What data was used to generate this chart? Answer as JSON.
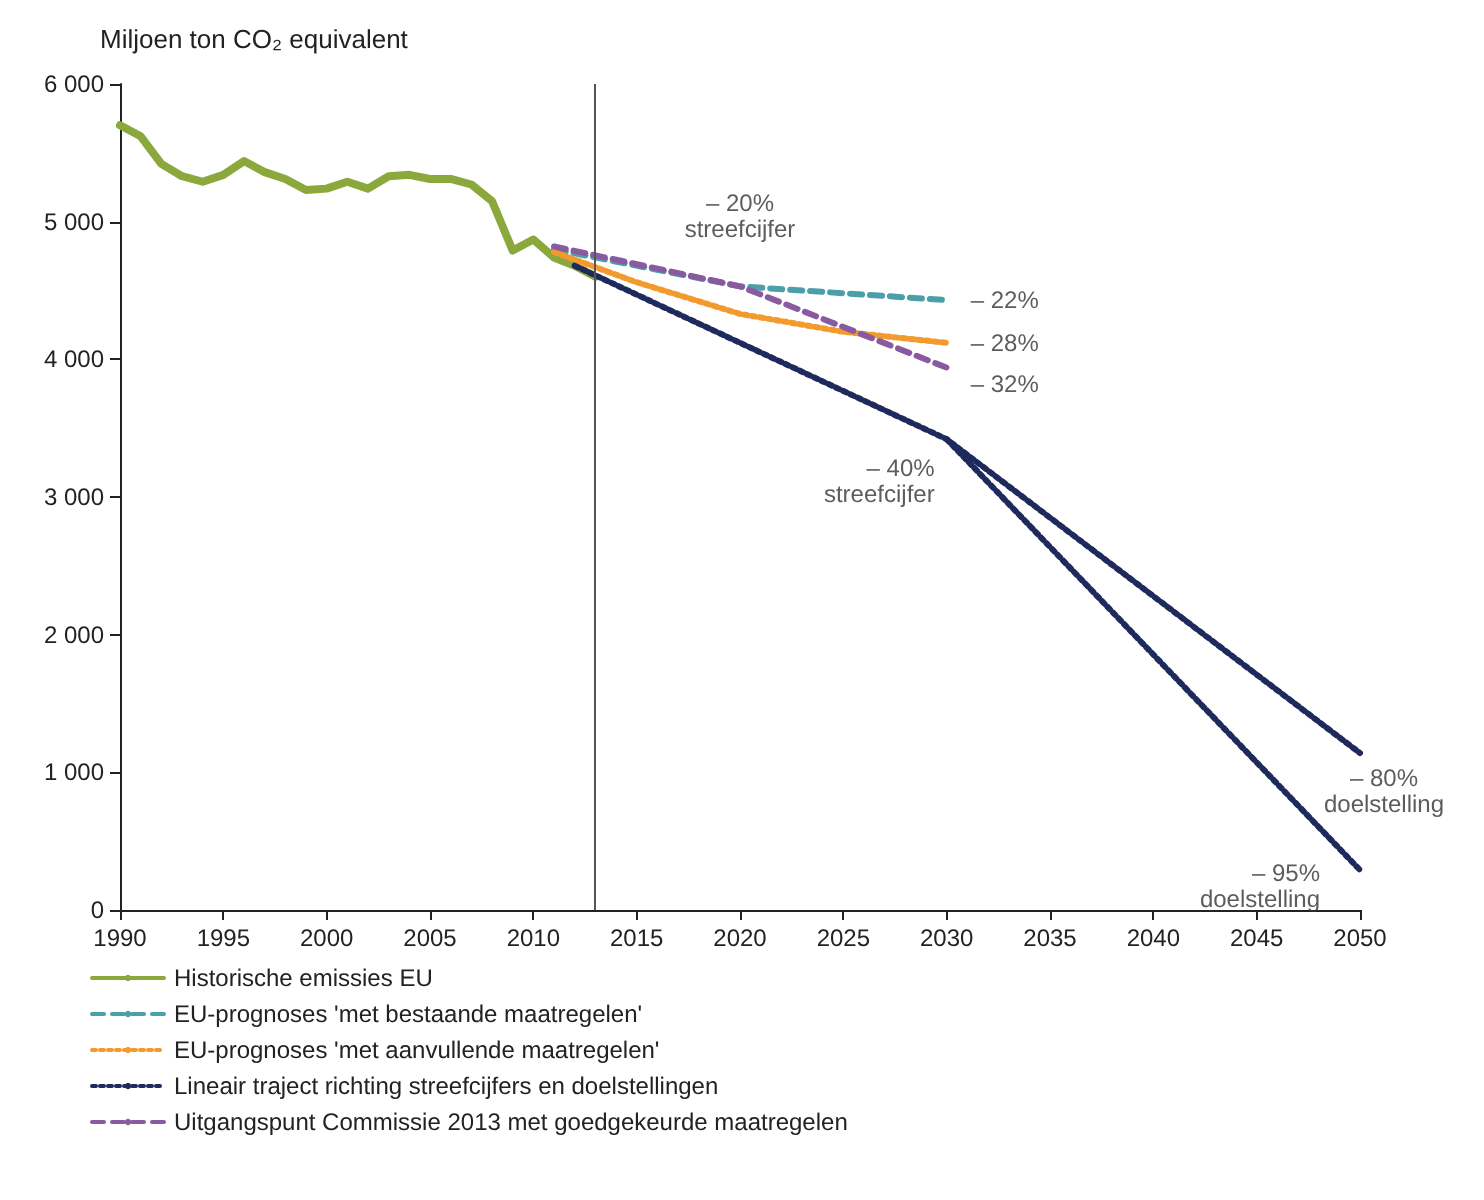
{
  "chart_data": {
    "type": "line",
    "ylabel": "Miljoen ton CO₂ equivalent",
    "xlim": [
      1990,
      2050
    ],
    "xticks": [
      1990,
      1995,
      2000,
      2005,
      2010,
      2015,
      2020,
      2025,
      2030,
      2035,
      2040,
      2045,
      2050
    ],
    "ylim": [
      0,
      6000
    ],
    "yticks": [
      {
        "value": 0,
        "label": "0"
      },
      {
        "value": 1000,
        "label": "1 000"
      },
      {
        "value": 2000,
        "label": "2 000"
      },
      {
        "value": 3000,
        "label": "3 000"
      },
      {
        "value": 4000,
        "label": "4 000"
      },
      {
        "value": 5000,
        "label": "5 000"
      },
      {
        "value": 6000,
        "label": "6 000"
      }
    ],
    "grid": false,
    "legend": "bottom",
    "marker": "none",
    "series": [
      {
        "name": "Historische emissies EU",
        "color": "#8aa83c",
        "line_style": "solid",
        "x": [
          1990,
          1991,
          1992,
          1993,
          1994,
          1995,
          1996,
          1997,
          1998,
          1999,
          2000,
          2001,
          2002,
          2003,
          2004,
          2005,
          2006,
          2007,
          2008,
          2009,
          2010,
          2011,
          2012,
          2013
        ],
        "values": [
          5700,
          5620,
          5420,
          5330,
          5290,
          5340,
          5440,
          5360,
          5310,
          5230,
          5240,
          5290,
          5240,
          5330,
          5340,
          5310,
          5310,
          5270,
          5150,
          4790,
          4870,
          4740,
          4680,
          4600
        ]
      },
      {
        "name": "EU-prognoses 'met bestaande maatregelen'",
        "color": "#4a9fa8",
        "line_style": "dashed",
        "x": [
          2011,
          2020,
          2030
        ],
        "values": [
          4800,
          4530,
          4430
        ]
      },
      {
        "name": "EU-prognoses 'met aanvullende maatregelen'",
        "color": "#f39a2e",
        "line_style": "dotted",
        "x": [
          2011,
          2015,
          2020,
          2025,
          2030
        ],
        "values": [
          4780,
          4560,
          4330,
          4200,
          4120
        ]
      },
      {
        "name": "Lineair traject richting streefcijfers en doelstellingen",
        "color": "#1f2a5c",
        "line_style": "dotted",
        "x": [
          2012,
          2030,
          2050
        ],
        "values": [
          4680,
          3420,
          1140
        ]
      },
      {
        "color": "#1f2a5c",
        "line_style": "dotted",
        "x": [
          2030,
          2050
        ],
        "values": [
          3420,
          290
        ]
      },
      {
        "name": "Uitgangspunt Commissie 2013 met goedgekeurde maatregelen",
        "color": "#8a5aa0",
        "line_style": "dashed",
        "x": [
          2011,
          2020,
          2030
        ],
        "values": [
          4820,
          4530,
          3940
        ]
      }
    ],
    "ref_lines": [
      {
        "axis": "x",
        "value": 2013,
        "color": "#555555",
        "line_style": "solid"
      }
    ],
    "annotations": [
      {
        "text": "– 20%\nstreefcijfer",
        "x": 2020,
        "y": 4530
      },
      {
        "text": "– 22%",
        "x": 2030,
        "y": 4430
      },
      {
        "text": "– 28%",
        "x": 2030,
        "y": 4120
      },
      {
        "text": "– 32%",
        "x": 2030,
        "y": 3940
      },
      {
        "text": "– 40%\nstreefcijfer",
        "x": 2030,
        "y": 3420
      },
      {
        "text": "– 80%\ndoelstelling",
        "x": 2050,
        "y": 1140
      },
      {
        "text": "– 95%\ndoelstelling",
        "x": 2050,
        "y": 290
      }
    ]
  }
}
